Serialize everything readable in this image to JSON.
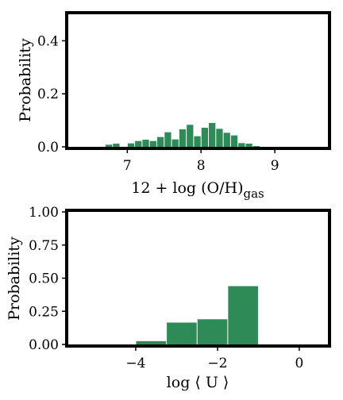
{
  "chart_data": [
    {
      "type": "bar",
      "title": "",
      "xlabel": "12 + log (O/H)",
      "xlabel_subscript": "gas",
      "ylabel": "Probability",
      "xlim": [
        6.2,
        9.72
      ],
      "ylim": [
        0,
        0.5
      ],
      "x_ticks": [
        7,
        8,
        9
      ],
      "x_tick_labels": [
        "7",
        "8",
        "9"
      ],
      "y_ticks": [
        0,
        0.2,
        0.4
      ],
      "y_tick_labels": [
        "0.0",
        "0.2",
        "0.4"
      ],
      "grid": false,
      "bar_color": "#2e8b57",
      "bin_width": 0.1,
      "x": [
        6.75,
        6.85,
        7.05,
        7.15,
        7.25,
        7.35,
        7.45,
        7.55,
        7.65,
        7.75,
        7.85,
        7.95,
        8.05,
        8.15,
        8.25,
        8.35,
        8.45,
        8.55,
        8.65,
        8.75
      ],
      "values": [
        0.008,
        0.012,
        0.013,
        0.022,
        0.027,
        0.022,
        0.037,
        0.055,
        0.028,
        0.066,
        0.083,
        0.04,
        0.072,
        0.09,
        0.068,
        0.053,
        0.043,
        0.014,
        0.012,
        0.003
      ]
    },
    {
      "type": "bar",
      "title": "",
      "xlabel": "log ⟨ U ⟩",
      "ylabel": "Probability",
      "xlim": [
        -5.65,
        0.7
      ],
      "ylim": [
        0,
        1.0
      ],
      "x_ticks": [
        -4,
        -2,
        0
      ],
      "x_tick_labels": [
        "−4",
        "−2",
        "0"
      ],
      "y_ticks": [
        0,
        0.25,
        0.5,
        0.75,
        1.0
      ],
      "y_tick_labels": [
        "0.00",
        "0.25",
        "0.50",
        "0.75",
        "1.00"
      ],
      "grid": false,
      "bar_color": "#2e8b57",
      "bin_width": 0.75,
      "x": [
        -3.625,
        -2.875,
        -2.125,
        -1.375
      ],
      "values": [
        0.025,
        0.165,
        0.19,
        0.44
      ]
    }
  ]
}
